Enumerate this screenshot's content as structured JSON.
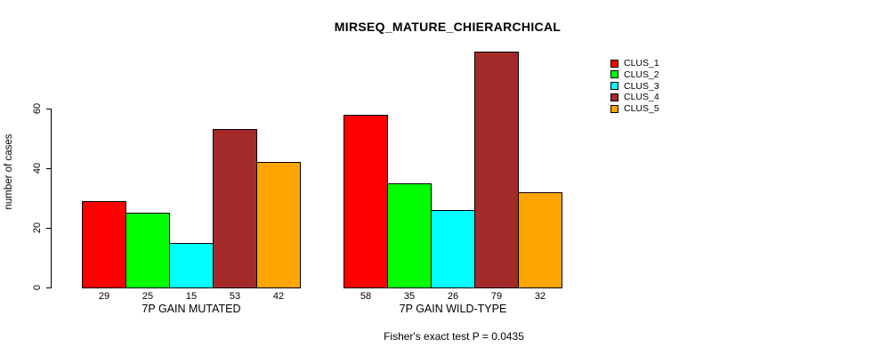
{
  "chart_data": {
    "type": "bar",
    "title": "MIRSEQ_MATURE_CHIERARCHICAL",
    "ylabel": "number of cases",
    "xlabel": "",
    "yticks": [
      0,
      20,
      40,
      60
    ],
    "ylim": [
      0,
      80
    ],
    "grid": false,
    "legend_position": "right",
    "categories": [
      "7P GAIN MUTATED",
      "7P GAIN WILD-TYPE"
    ],
    "series": [
      {
        "name": "CLUS_1",
        "color": "#ff0000",
        "values": [
          29,
          58
        ]
      },
      {
        "name": "CLUS_2",
        "color": "#00ff00",
        "values": [
          25,
          35
        ]
      },
      {
        "name": "CLUS_3",
        "color": "#00ffff",
        "values": [
          15,
          26
        ]
      },
      {
        "name": "CLUS_4",
        "color": "#a52a2a",
        "values": [
          53,
          79
        ]
      },
      {
        "name": "CLUS_5",
        "color": "#ffa500",
        "values": [
          42,
          32
        ]
      }
    ],
    "bar_value_labels_shown": true,
    "annotation": "Fisher's exact test P = 0.0435"
  }
}
